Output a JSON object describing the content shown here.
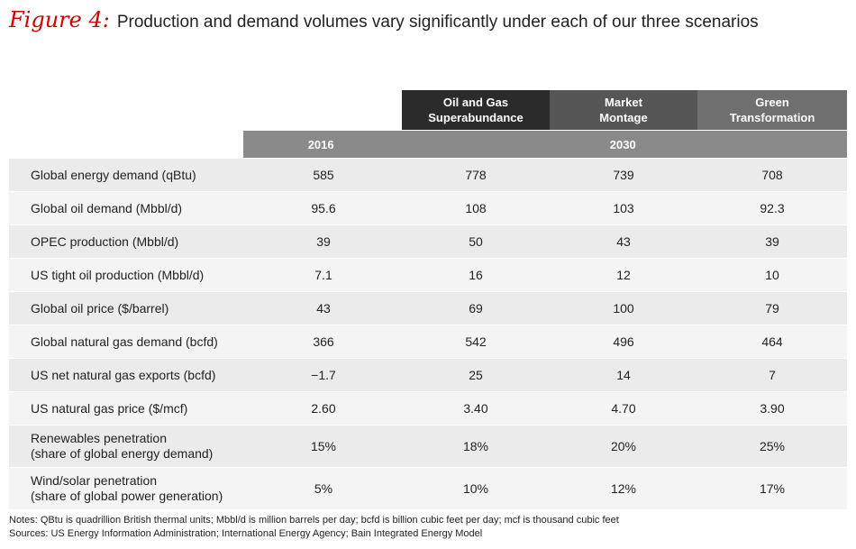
{
  "figure": {
    "label": "Figure 4:",
    "title": "Production and demand volumes vary significantly under each of our three scenarios"
  },
  "headers": {
    "scenarios": [
      "Oil and Gas\nSuperabundance",
      "Market\nMontage",
      "Green\nTransformation"
    ],
    "year_base": "2016",
    "year_future": "2030"
  },
  "rows": [
    {
      "label": "Global energy demand (qBtu)",
      "values": [
        "585",
        "778",
        "739",
        "708"
      ]
    },
    {
      "label": "Global oil demand (Mbbl/d)",
      "values": [
        "95.6",
        "108",
        "103",
        "92.3"
      ]
    },
    {
      "label": "OPEC production (Mbbl/d)",
      "values": [
        "39",
        "50",
        "43",
        "39"
      ]
    },
    {
      "label": "US tight oil production (Mbbl/d)",
      "values": [
        "7.1",
        "16",
        "12",
        "10"
      ]
    },
    {
      "label": "Global oil price ($/barrel)",
      "values": [
        "43",
        "69",
        "100",
        "79"
      ]
    },
    {
      "label": "Global natural gas demand (bcfd)",
      "values": [
        "366",
        "542",
        "496",
        "464"
      ]
    },
    {
      "label": "US net natural gas exports (bcfd)",
      "values": [
        "−1.7",
        "25",
        "14",
        "7"
      ]
    },
    {
      "label": "US natural gas price ($/mcf)",
      "values": [
        "2.60",
        "3.40",
        "4.70",
        "3.90"
      ]
    },
    {
      "label": "Renewables penetration\n(share of global energy demand)",
      "values": [
        "15%",
        "18%",
        "20%",
        "25%"
      ]
    },
    {
      "label": "Wind/solar penetration\n(share of global power generation)",
      "values": [
        "5%",
        "10%",
        "12%",
        "17%"
      ]
    }
  ],
  "notes": {
    "notes_line": "Notes: QBtu is quadrillion British thermal units; Mbbl/d is million barrels per day; bcfd is billion cubic feet per day; mcf is thousand cubic feet",
    "sources_line": "Sources: US Energy Information Administration; International Energy Agency; Bain Integrated Energy Model"
  }
}
